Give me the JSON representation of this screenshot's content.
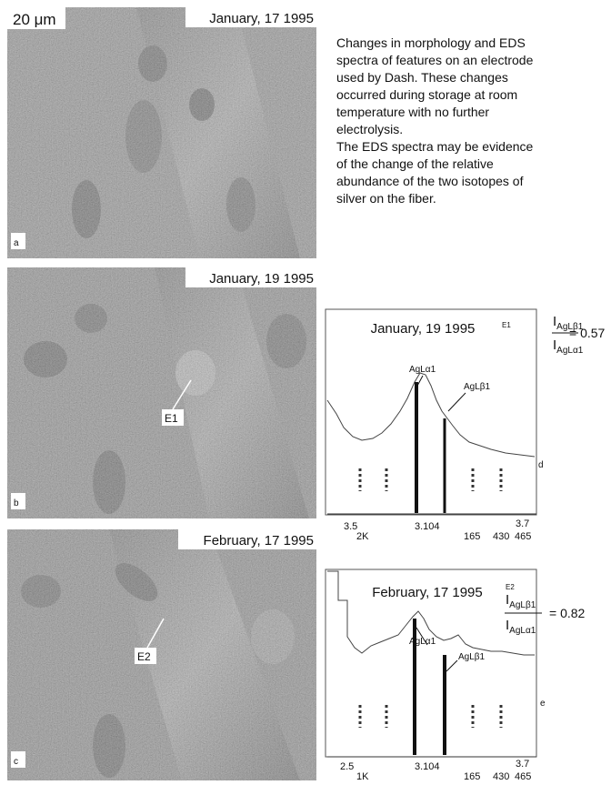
{
  "panels": [
    {
      "letter": "a",
      "scale": "20 μm",
      "date": "January, 17 1995"
    },
    {
      "letter": "b",
      "date": "January, 19 1995",
      "marker": "E1"
    },
    {
      "letter": "c",
      "date": "February, 17 1995",
      "marker": "E2"
    }
  ],
  "caption_lines": [
    "Changes in morphology and EDS",
    "spectra of features on an electrode",
    "used by Dash. These changes",
    "occurred during storage at room",
    "temperature with no further",
    "electrolysis.",
    "The EDS spectra may be evidence",
    "of the change of the relative",
    "abundance of the two isotopes of",
    "silver on the fiber."
  ],
  "spectra": [
    {
      "letter": "d",
      "date": "January, 19 1995",
      "marker": "E1",
      "peaks": [
        "AgLα1",
        "AgLβ1"
      ],
      "ratio": {
        "numerator": "I",
        "numerator_sub": "AgLβ1",
        "denominator": "I",
        "denominator_sub": "AgLα1",
        "value": "= 0.57"
      },
      "axis_labels": [
        "3.5",
        "2K",
        "3.104",
        "165",
        "3.7",
        "430",
        "465"
      ]
    },
    {
      "letter": "e",
      "date": "February, 17 1995",
      "marker": "E2",
      "peaks": [
        "AgLα1",
        "AgLβ1"
      ],
      "ratio": {
        "numerator": "I",
        "numerator_sub": "AgLβ1",
        "denominator": "I",
        "denominator_sub": "AgLα1",
        "value": "= 0.82"
      },
      "axis_labels": [
        "2.5",
        "1K",
        "3.104",
        "165",
        "3.7",
        "430",
        "465"
      ]
    }
  ]
}
